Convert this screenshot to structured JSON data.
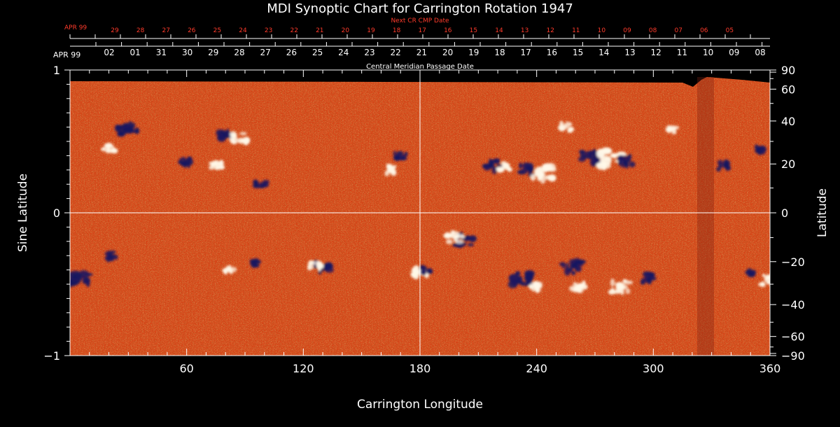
{
  "chart_data": {
    "type": "heatmap",
    "title": "MDI Synoptic Chart for Carrington Rotation 1947",
    "xlabel": "Carrington Longitude",
    "ylabel_left": "Sine Latitude",
    "ylabel_right": "Latitude",
    "top_axis_1_label": "Next CR CMP Date",
    "top_axis_1_month": "APR 99",
    "top_axis_1_ticks": [
      "29",
      "28",
      "27",
      "26",
      "25",
      "24",
      "23",
      "22",
      "21",
      "20",
      "19",
      "18",
      "17",
      "16",
      "15",
      "14",
      "13",
      "12",
      "11",
      "10",
      "09",
      "08",
      "07",
      "06",
      "05"
    ],
    "top_axis_2_label": "Central Meridian Passage Date",
    "top_axis_2_month": "APR 99",
    "top_axis_2_ticks": [
      "02",
      "01",
      "31",
      "30",
      "29",
      "28",
      "27",
      "26",
      "25",
      "24",
      "23",
      "22",
      "21",
      "20",
      "19",
      "18",
      "17",
      "16",
      "15",
      "14",
      "13",
      "12",
      "11",
      "10",
      "09",
      "08"
    ],
    "xlim": [
      0,
      360
    ],
    "xticks": [
      "60",
      "120",
      "180",
      "240",
      "300",
      "360"
    ],
    "xtick_values": [
      60,
      120,
      180,
      240,
      300,
      360
    ],
    "ylim": [
      -1,
      1
    ],
    "yticks_left": [
      "1",
      "0",
      "−1"
    ],
    "yticks_left_values": [
      1,
      0,
      -1
    ],
    "yticks_right": [
      "90",
      "60",
      "40",
      "20",
      "0",
      "−20",
      "−40",
      "−60",
      "−90"
    ],
    "yticks_right_values": [
      90,
      60,
      40,
      20,
      0,
      -20,
      -40,
      -60,
      -90
    ],
    "grid_lines": {
      "x": [
        180
      ],
      "y": [
        0
      ]
    },
    "features": [
      {
        "lon": 5,
        "sinlat": -0.46,
        "polarity": "negative",
        "strength": 0.9
      },
      {
        "lon": 22,
        "sinlat": -0.3,
        "polarity": "negative",
        "strength": 0.5
      },
      {
        "lon": 28,
        "sinlat": 0.58,
        "polarity": "negative",
        "strength": 0.6
      },
      {
        "lon": 32,
        "sinlat": 0.6,
        "polarity": "negative",
        "strength": 0.6
      },
      {
        "lon": 20,
        "sinlat": 0.45,
        "polarity": "positive",
        "strength": 0.5
      },
      {
        "lon": 60,
        "sinlat": 0.35,
        "polarity": "negative",
        "strength": 0.6
      },
      {
        "lon": 75,
        "sinlat": 0.33,
        "polarity": "positive",
        "strength": 0.5
      },
      {
        "lon": 80,
        "sinlat": 0.55,
        "polarity": "negative",
        "strength": 0.7
      },
      {
        "lon": 88,
        "sinlat": 0.52,
        "polarity": "positive",
        "strength": 0.7
      },
      {
        "lon": 98,
        "sinlat": 0.2,
        "polarity": "negative",
        "strength": 0.5
      },
      {
        "lon": 95,
        "sinlat": -0.35,
        "polarity": "negative",
        "strength": 0.4
      },
      {
        "lon": 82,
        "sinlat": -0.4,
        "polarity": "positive",
        "strength": 0.4
      },
      {
        "lon": 130,
        "sinlat": -0.38,
        "polarity": "negative",
        "strength": 0.6
      },
      {
        "lon": 126,
        "sinlat": -0.37,
        "polarity": "positive",
        "strength": 0.5
      },
      {
        "lon": 170,
        "sinlat": 0.4,
        "polarity": "negative",
        "strength": 0.5
      },
      {
        "lon": 165,
        "sinlat": 0.3,
        "polarity": "positive",
        "strength": 0.5
      },
      {
        "lon": 180,
        "sinlat": -0.42,
        "polarity": "positive",
        "strength": 0.6
      },
      {
        "lon": 183,
        "sinlat": -0.4,
        "polarity": "negative",
        "strength": 0.4
      },
      {
        "lon": 203,
        "sinlat": -0.19,
        "polarity": "negative",
        "strength": 0.7
      },
      {
        "lon": 198,
        "sinlat": -0.17,
        "polarity": "positive",
        "strength": 0.7
      },
      {
        "lon": 218,
        "sinlat": 0.33,
        "polarity": "negative",
        "strength": 0.7
      },
      {
        "lon": 224,
        "sinlat": 0.32,
        "polarity": "positive",
        "strength": 0.5
      },
      {
        "lon": 235,
        "sinlat": 0.3,
        "polarity": "negative",
        "strength": 0.6
      },
      {
        "lon": 243,
        "sinlat": 0.28,
        "polarity": "positive",
        "strength": 0.9
      },
      {
        "lon": 255,
        "sinlat": 0.6,
        "polarity": "positive",
        "strength": 0.5
      },
      {
        "lon": 268,
        "sinlat": 0.38,
        "polarity": "negative",
        "strength": 0.9
      },
      {
        "lon": 278,
        "sinlat": 0.38,
        "polarity": "positive",
        "strength": 1.0
      },
      {
        "lon": 286,
        "sinlat": 0.36,
        "polarity": "negative",
        "strength": 0.6
      },
      {
        "lon": 232,
        "sinlat": -0.46,
        "polarity": "negative",
        "strength": 0.8
      },
      {
        "lon": 240,
        "sinlat": -0.52,
        "polarity": "positive",
        "strength": 0.5
      },
      {
        "lon": 258,
        "sinlat": -0.38,
        "polarity": "negative",
        "strength": 0.8
      },
      {
        "lon": 262,
        "sinlat": -0.52,
        "polarity": "positive",
        "strength": 0.6
      },
      {
        "lon": 283,
        "sinlat": -0.52,
        "polarity": "positive",
        "strength": 0.8
      },
      {
        "lon": 297,
        "sinlat": -0.46,
        "polarity": "negative",
        "strength": 0.6
      },
      {
        "lon": 310,
        "sinlat": 0.58,
        "polarity": "positive",
        "strength": 0.4
      },
      {
        "lon": 336,
        "sinlat": 0.33,
        "polarity": "negative",
        "strength": 0.5
      },
      {
        "lon": 355,
        "sinlat": 0.44,
        "polarity": "negative",
        "strength": 0.4
      },
      {
        "lon": 358,
        "sinlat": -0.47,
        "polarity": "positive",
        "strength": 0.6
      },
      {
        "lon": 350,
        "sinlat": -0.42,
        "polarity": "negative",
        "strength": 0.4
      }
    ],
    "colors": {
      "background": "#000000",
      "field_base": "#e8501c",
      "field_dark": "#8a1808",
      "field_mid": "#c2300e",
      "field_light": "#f6a040",
      "positive": "#fff8e8",
      "negative": "#1a1460",
      "axis": "#ffffff",
      "date_red": "#ff3b2b"
    }
  }
}
